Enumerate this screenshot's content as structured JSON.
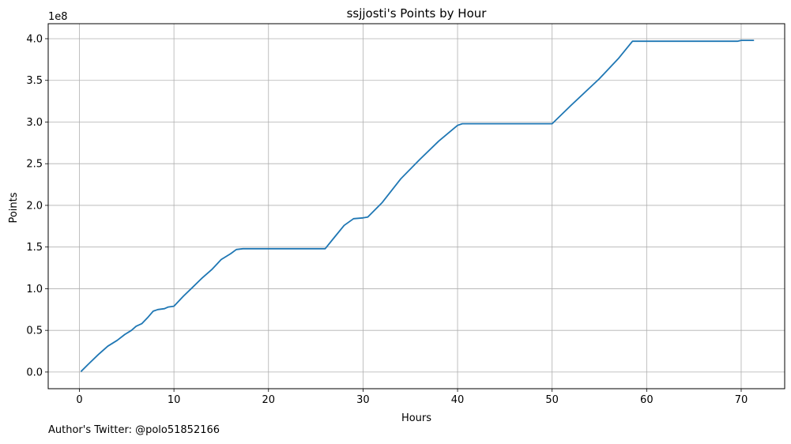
{
  "chart_data": {
    "type": "line",
    "title": "ssjjosti's Points by Hour",
    "xlabel": "Hours",
    "ylabel": "Points",
    "y_offset_label": "1e8",
    "xlim": [
      -3.3,
      74.6
    ],
    "ylim": [
      -0.2,
      4.18
    ],
    "x_ticks": [
      0,
      10,
      20,
      30,
      40,
      50,
      60,
      70
    ],
    "x_tick_labels": [
      "0",
      "10",
      "20",
      "30",
      "40",
      "50",
      "60",
      "70"
    ],
    "y_ticks": [
      0.0,
      0.5,
      1.0,
      1.5,
      2.0,
      2.5,
      3.0,
      3.5,
      4.0
    ],
    "y_tick_labels": [
      "0.0",
      "0.5",
      "1.0",
      "1.5",
      "2.0",
      "2.5",
      "3.0",
      "3.5",
      "4.0"
    ],
    "grid": true,
    "series": [
      {
        "color": "#1f77b4",
        "x": [
          0.2,
          1.0,
          2.0,
          3.0,
          4.0,
          4.8,
          5.5,
          6.0,
          6.6,
          7.2,
          7.8,
          8.3,
          9.0,
          9.4,
          10.0,
          11.0,
          12.0,
          13.0,
          14.0,
          15.0,
          16.0,
          16.6,
          17.3,
          18.0,
          20.0,
          22.0,
          24.0,
          26.0,
          27.0,
          28.0,
          29.0,
          30.0,
          30.5,
          32.0,
          34.0,
          36.0,
          38.0,
          40.0,
          40.5,
          42.0,
          45.0,
          48.0,
          50.0,
          52.0,
          55.0,
          57.0,
          58.5,
          60.0,
          65.0,
          69.6,
          70.0,
          71.3
        ],
        "y": [
          0.01,
          0.1,
          0.21,
          0.31,
          0.38,
          0.45,
          0.5,
          0.55,
          0.58,
          0.65,
          0.73,
          0.75,
          0.76,
          0.78,
          0.79,
          0.91,
          1.02,
          1.13,
          1.23,
          1.35,
          1.42,
          1.47,
          1.48,
          1.48,
          1.48,
          1.48,
          1.48,
          1.48,
          1.62,
          1.76,
          1.84,
          1.85,
          1.86,
          2.03,
          2.32,
          2.55,
          2.77,
          2.96,
          2.98,
          2.98,
          2.98,
          2.98,
          2.98,
          3.2,
          3.52,
          3.76,
          3.97,
          3.97,
          3.97,
          3.97,
          3.98,
          3.98
        ]
      }
    ]
  },
  "footer": {
    "text": "Author's Twitter: @polo51852166"
  }
}
